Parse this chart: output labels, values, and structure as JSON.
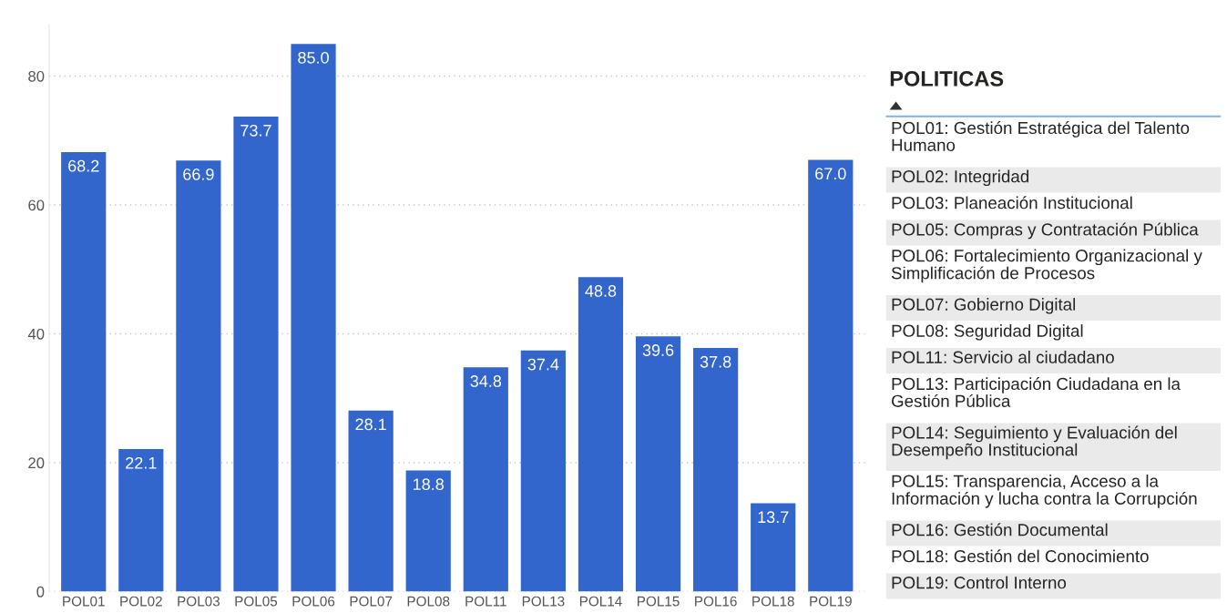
{
  "chart_data": [
    {
      "type": "bar",
      "categories": [
        "POL01",
        "POL02",
        "POL03",
        "POL05",
        "POL06",
        "POL07",
        "POL08",
        "POL11",
        "POL13",
        "POL14",
        "POL15",
        "POL16",
        "POL18",
        "POL19"
      ],
      "values": [
        68.2,
        22.1,
        66.9,
        73.7,
        85.0,
        28.1,
        18.8,
        34.8,
        37.4,
        48.8,
        39.6,
        37.8,
        13.7,
        67.0
      ],
      "value_labels": [
        "68.2",
        "22.1",
        "66.9",
        "73.7",
        "85.0",
        "28.1",
        "18.8",
        "34.8",
        "37.4",
        "48.8",
        "39.6",
        "37.8",
        "13.7",
        "67.0"
      ],
      "color": "#3366cc",
      "ylim": [
        0,
        88
      ],
      "yticks": [
        0,
        20,
        40,
        60,
        80
      ],
      "grid": "y"
    },
    {
      "type": "other",
      "title": "POLITICAS",
      "annotations": [
        "POL01: Gestión Estratégica del Talento\nHumano",
        "POL02: Integridad",
        "POL03: Planeación Institucional",
        "POL05: Compras y Contratación Pública",
        "POL06: Fortalecimiento Organizacional y\nSimplificación de Procesos",
        "POL07: Gobierno Digital",
        "POL08: Seguridad Digital",
        "POL11: Servicio al ciudadano",
        "POL13: Participación Ciudadana en la\nGestión Pública",
        "POL14: Seguimiento y Evaluación del\nDesempeño Institucional",
        "POL15: Transparencia, Acceso a la\nInformación y lucha contra la Corrupción",
        "POL16: Gestión Documental",
        "POL18: Gestión del Conocimiento",
        "POL19: Control Interno"
      ]
    }
  ]
}
